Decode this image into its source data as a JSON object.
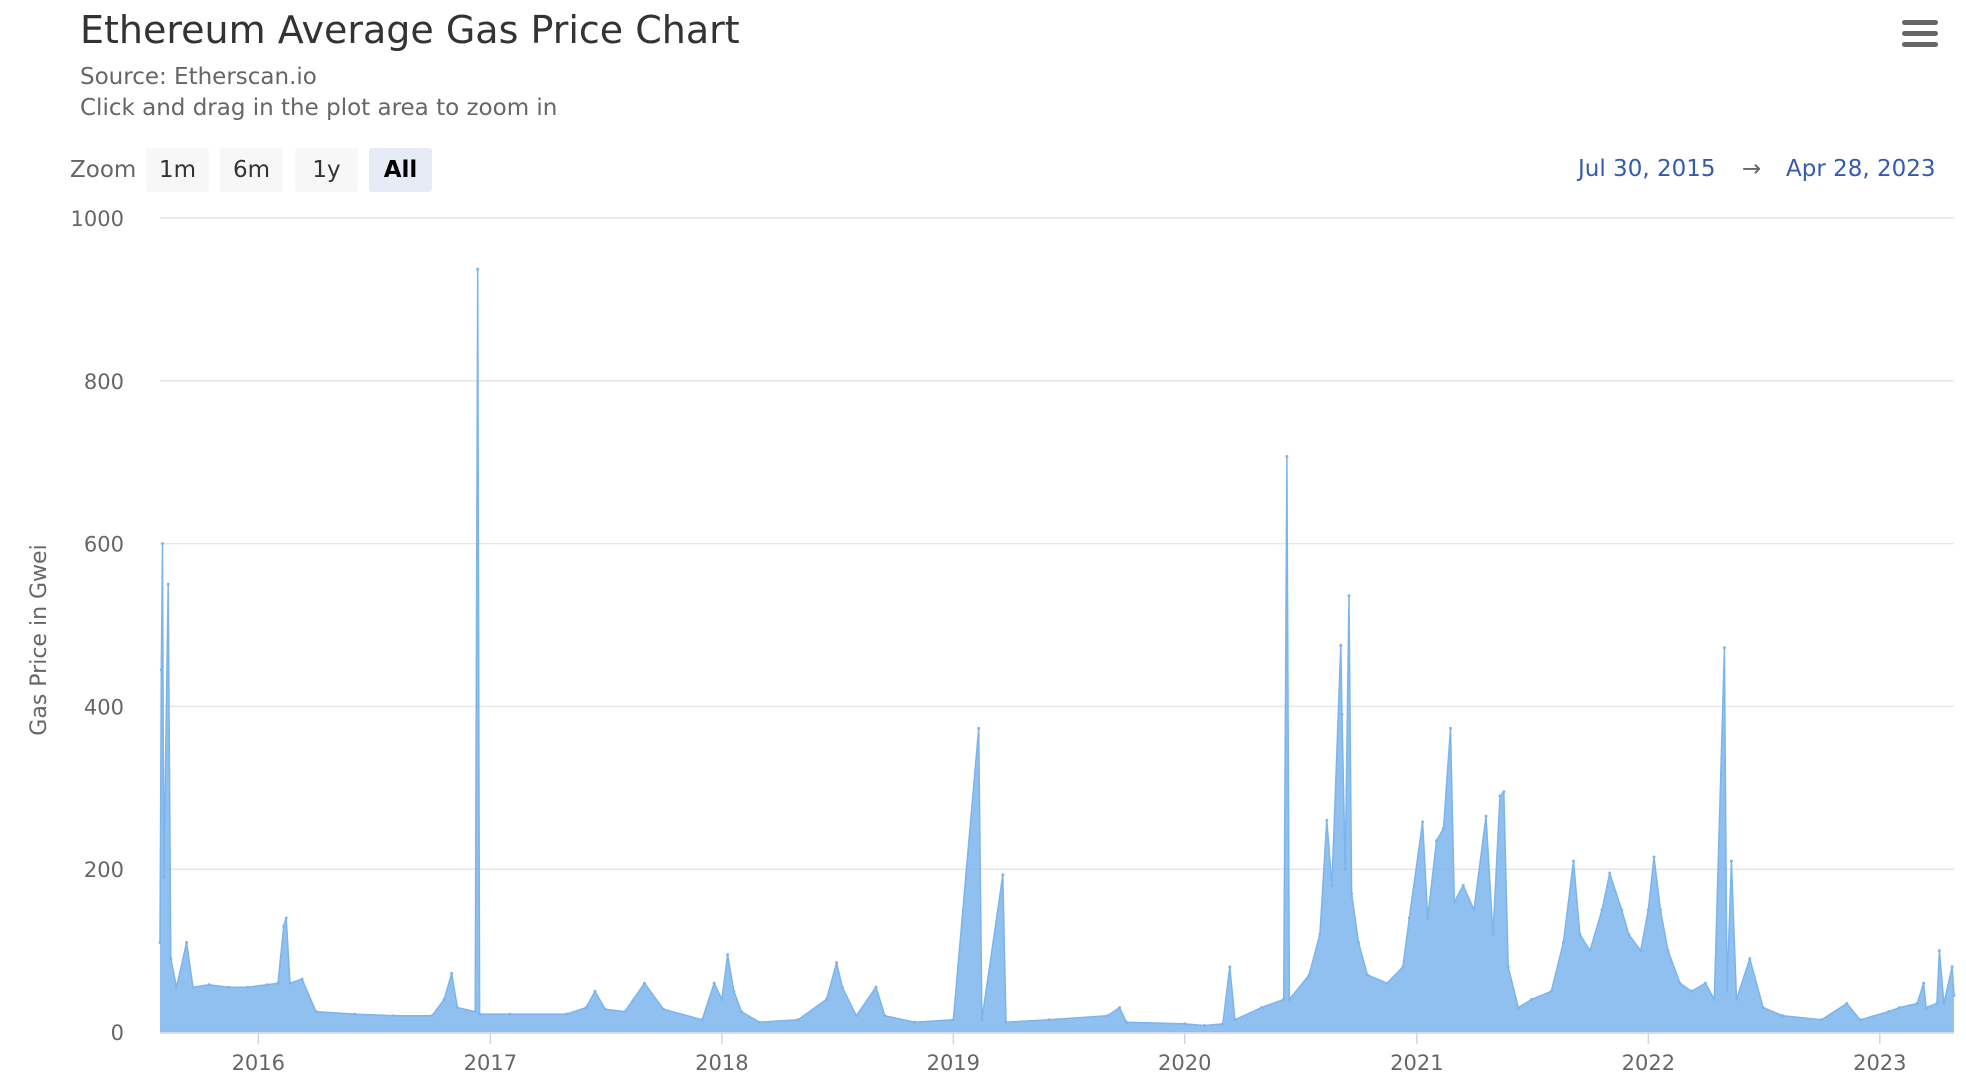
{
  "header": {
    "title": "Ethereum Average Gas Price Chart",
    "source": "Source: Etherscan.io",
    "instruction": "Click and drag in the plot area to zoom in",
    "menu_icon": "hamburger-menu-icon"
  },
  "range_selector": {
    "zoom_label": "Zoom",
    "buttons": [
      "1m",
      "6m",
      "1y",
      "All"
    ],
    "selected": "All",
    "from": "Jul 30, 2015",
    "arrow": "→",
    "to": "Apr 28, 2023"
  },
  "colors": {
    "series": "#7cb5ec",
    "grid": "#e6e6e6",
    "text": "#333333",
    "axis_text": "#666666",
    "date_link": "#335cad"
  },
  "chart_data": {
    "type": "area",
    "title": "Ethereum Average Gas Price Chart",
    "subtitle": "Source: Etherscan.io",
    "ylabel": "Gas Price in Gwei",
    "xlabel": "",
    "ylim": [
      0,
      1000
    ],
    "y_ticks": [
      "0",
      "200",
      "400",
      "600",
      "800",
      "1000"
    ],
    "x_ticks": [
      "2016",
      "2017",
      "2018",
      "2019",
      "2020",
      "2021",
      "2022",
      "2023"
    ],
    "xlim": [
      "2015-07-30",
      "2023-04-28"
    ],
    "grid": true,
    "legend": "none",
    "series": [
      {
        "points": [
          [
            "2015-07-30",
            110
          ],
          [
            "2015-08-01",
            445
          ],
          [
            "2015-08-03",
            600
          ],
          [
            "2015-08-05",
            190
          ],
          [
            "2015-08-12",
            550
          ],
          [
            "2015-08-16",
            90
          ],
          [
            "2015-08-25",
            55
          ],
          [
            "2015-09-10",
            110
          ],
          [
            "2015-09-20",
            55
          ],
          [
            "2015-10-15",
            58
          ],
          [
            "2015-11-15",
            55
          ],
          [
            "2015-12-15",
            55
          ],
          [
            "2016-01-15",
            58
          ],
          [
            "2016-02-01",
            60
          ],
          [
            "2016-02-10",
            130
          ],
          [
            "2016-02-14",
            140
          ],
          [
            "2016-02-20",
            60
          ],
          [
            "2016-03-10",
            65
          ],
          [
            "2016-04-01",
            25
          ],
          [
            "2016-06-01",
            22
          ],
          [
            "2016-08-01",
            20
          ],
          [
            "2016-10-01",
            20
          ],
          [
            "2016-10-20",
            40
          ],
          [
            "2016-11-01",
            72
          ],
          [
            "2016-11-10",
            30
          ],
          [
            "2016-12-08",
            25
          ],
          [
            "2016-12-12",
            937
          ],
          [
            "2016-12-15",
            22
          ],
          [
            "2017-02-01",
            22
          ],
          [
            "2017-05-01",
            22
          ],
          [
            "2017-06-01",
            30
          ],
          [
            "2017-06-15",
            50
          ],
          [
            "2017-07-01",
            28
          ],
          [
            "2017-08-01",
            25
          ],
          [
            "2017-09-01",
            60
          ],
          [
            "2017-10-01",
            28
          ],
          [
            "2017-12-01",
            15
          ],
          [
            "2017-12-20",
            60
          ],
          [
            "2018-01-01",
            40
          ],
          [
            "2018-01-10",
            95
          ],
          [
            "2018-01-20",
            50
          ],
          [
            "2018-02-01",
            25
          ],
          [
            "2018-03-01",
            12
          ],
          [
            "2018-05-01",
            15
          ],
          [
            "2018-06-15",
            40
          ],
          [
            "2018-07-01",
            85
          ],
          [
            "2018-07-10",
            55
          ],
          [
            "2018-08-01",
            20
          ],
          [
            "2018-09-01",
            55
          ],
          [
            "2018-09-15",
            20
          ],
          [
            "2018-11-01",
            12
          ],
          [
            "2019-01-01",
            15
          ],
          [
            "2019-02-10",
            373
          ],
          [
            "2019-02-15",
            15
          ],
          [
            "2019-03-20",
            193
          ],
          [
            "2019-03-25",
            12
          ],
          [
            "2019-06-01",
            15
          ],
          [
            "2019-09-01",
            20
          ],
          [
            "2019-09-20",
            30
          ],
          [
            "2019-10-01",
            12
          ],
          [
            "2020-01-01",
            10
          ],
          [
            "2020-02-01",
            8
          ],
          [
            "2020-03-01",
            10
          ],
          [
            "2020-03-12",
            80
          ],
          [
            "2020-03-20",
            15
          ],
          [
            "2020-05-01",
            30
          ],
          [
            "2020-06-05",
            40
          ],
          [
            "2020-06-10",
            707
          ],
          [
            "2020-06-14",
            40
          ],
          [
            "2020-07-15",
            70
          ],
          [
            "2020-08-01",
            120
          ],
          [
            "2020-08-12",
            260
          ],
          [
            "2020-08-20",
            180
          ],
          [
            "2020-09-03",
            475
          ],
          [
            "2020-09-05",
            390
          ],
          [
            "2020-09-10",
            200
          ],
          [
            "2020-09-16",
            536
          ],
          [
            "2020-09-20",
            170
          ],
          [
            "2020-10-01",
            110
          ],
          [
            "2020-10-15",
            70
          ],
          [
            "2020-11-15",
            60
          ],
          [
            "2020-12-10",
            80
          ],
          [
            "2020-12-20",
            140
          ],
          [
            "2021-01-10",
            258
          ],
          [
            "2021-01-18",
            140
          ],
          [
            "2021-02-01",
            235
          ],
          [
            "2021-02-12",
            250
          ],
          [
            "2021-02-23",
            373
          ],
          [
            "2021-03-01",
            160
          ],
          [
            "2021-03-15",
            180
          ],
          [
            "2021-04-01",
            150
          ],
          [
            "2021-04-20",
            265
          ],
          [
            "2021-05-01",
            120
          ],
          [
            "2021-05-12",
            290
          ],
          [
            "2021-05-18",
            295
          ],
          [
            "2021-05-25",
            80
          ],
          [
            "2021-06-10",
            30
          ],
          [
            "2021-07-01",
            40
          ],
          [
            "2021-08-01",
            50
          ],
          [
            "2021-08-20",
            110
          ],
          [
            "2021-09-05",
            210
          ],
          [
            "2021-09-15",
            120
          ],
          [
            "2021-10-01",
            100
          ],
          [
            "2021-10-20",
            150
          ],
          [
            "2021-11-01",
            195
          ],
          [
            "2021-11-20",
            150
          ],
          [
            "2021-12-01",
            120
          ],
          [
            "2021-12-20",
            100
          ],
          [
            "2022-01-01",
            150
          ],
          [
            "2022-01-10",
            215
          ],
          [
            "2022-01-20",
            150
          ],
          [
            "2022-02-01",
            100
          ],
          [
            "2022-02-20",
            60
          ],
          [
            "2022-03-10",
            50
          ],
          [
            "2022-04-01",
            60
          ],
          [
            "2022-04-15",
            40
          ],
          [
            "2022-05-01",
            472
          ],
          [
            "2022-05-05",
            50
          ],
          [
            "2022-05-12",
            210
          ],
          [
            "2022-05-20",
            40
          ],
          [
            "2022-06-10",
            90
          ],
          [
            "2022-07-01",
            30
          ],
          [
            "2022-08-01",
            20
          ],
          [
            "2022-10-01",
            15
          ],
          [
            "2022-11-10",
            35
          ],
          [
            "2022-12-01",
            15
          ],
          [
            "2023-01-15",
            25
          ],
          [
            "2023-02-01",
            30
          ],
          [
            "2023-03-01",
            35
          ],
          [
            "2023-03-11",
            60
          ],
          [
            "2023-03-15",
            30
          ],
          [
            "2023-04-01",
            35
          ],
          [
            "2023-04-05",
            100
          ],
          [
            "2023-04-12",
            35
          ],
          [
            "2023-04-25",
            80
          ],
          [
            "2023-04-28",
            45
          ]
        ]
      }
    ]
  }
}
